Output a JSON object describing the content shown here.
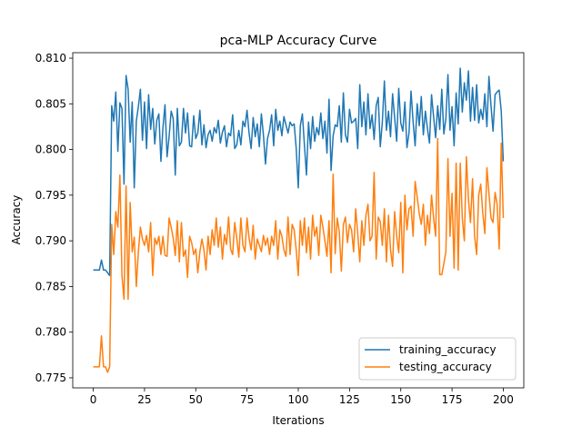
{
  "chart_data": {
    "type": "line",
    "title": "pca-MLP Accuracy Curve",
    "xlabel": "Iterations",
    "ylabel": "Accuracy",
    "x": [
      0,
      1,
      2,
      3,
      4,
      5,
      6,
      7,
      8,
      9,
      10,
      11,
      12,
      13,
      14,
      15,
      16,
      17,
      18,
      19,
      20,
      21,
      22,
      23,
      24,
      25,
      26,
      27,
      28,
      29,
      30,
      31,
      32,
      33,
      34,
      35,
      36,
      37,
      38,
      39,
      40,
      41,
      42,
      43,
      44,
      45,
      46,
      47,
      48,
      49,
      50,
      51,
      52,
      53,
      54,
      55,
      56,
      57,
      58,
      59,
      60,
      61,
      62,
      63,
      64,
      65,
      66,
      67,
      68,
      69,
      70,
      71,
      72,
      73,
      74,
      75,
      76,
      77,
      78,
      79,
      80,
      81,
      82,
      83,
      84,
      85,
      86,
      87,
      88,
      89,
      90,
      91,
      92,
      93,
      94,
      95,
      96,
      97,
      98,
      99,
      100,
      101,
      102,
      103,
      104,
      105,
      106,
      107,
      108,
      109,
      110,
      111,
      112,
      113,
      114,
      115,
      116,
      117,
      118,
      119,
      120,
      121,
      122,
      123,
      124,
      125,
      126,
      127,
      128,
      129,
      130,
      131,
      132,
      133,
      134,
      135,
      136,
      137,
      138,
      139,
      140,
      141,
      142,
      143,
      144,
      145,
      146,
      147,
      148,
      149,
      150,
      151,
      152,
      153,
      154,
      155,
      156,
      157,
      158,
      159,
      160,
      161,
      162,
      163,
      164,
      165,
      166,
      167,
      168,
      169,
      170,
      171,
      172,
      173,
      174,
      175,
      176,
      177,
      178,
      179,
      180,
      181,
      182,
      183,
      184,
      185,
      186,
      187,
      188,
      189,
      190,
      191,
      192,
      193,
      194,
      195,
      196,
      197,
      198,
      199,
      200
    ],
    "series": [
      {
        "name": "training_accuracy",
        "color": "#1f77b4",
        "values": [
          0.7868,
          0.7868,
          0.7868,
          0.7868,
          0.7879,
          0.7868,
          0.7868,
          0.7865,
          0.7862,
          0.8048,
          0.8031,
          0.8063,
          0.7998,
          0.8051,
          0.8045,
          0.7962,
          0.8081,
          0.8066,
          0.8008,
          0.8052,
          0.7958,
          0.8031,
          0.8047,
          0.8066,
          0.801,
          0.8052,
          0.8001,
          0.806,
          0.8022,
          0.8045,
          0.8006,
          0.8032,
          0.8039,
          0.7987,
          0.8024,
          0.8049,
          0.7992,
          0.8014,
          0.8042,
          0.8034,
          0.7972,
          0.8045,
          0.8004,
          0.8008,
          0.8045,
          0.8018,
          0.804,
          0.8004,
          0.8003,
          0.8037,
          0.8012,
          0.8018,
          0.8043,
          0.8005,
          0.8027,
          0.8002,
          0.8016,
          0.8021,
          0.8009,
          0.8024,
          0.8018,
          0.8032,
          0.8007,
          0.8019,
          0.8026,
          0.8003,
          0.8018,
          0.8015,
          0.8038,
          0.8001,
          0.8005,
          0.8021,
          0.8005,
          0.8031,
          0.8025,
          0.8043,
          0.8018,
          0.8001,
          0.8035,
          0.8014,
          0.8028,
          0.8003,
          0.8039,
          0.8016,
          0.7984,
          0.8012,
          0.8021,
          0.8038,
          0.8004,
          0.8044,
          0.8021,
          0.8031,
          0.8015,
          0.8036,
          0.8027,
          0.8018,
          0.803,
          0.8026,
          0.8028,
          0.8001,
          0.7958,
          0.8026,
          0.8039,
          0.8005,
          0.7972,
          0.803,
          0.8001,
          0.8036,
          0.8009,
          0.8024,
          0.8016,
          0.804,
          0.8012,
          0.8031,
          0.7996,
          0.8055,
          0.7977,
          0.8015,
          0.8027,
          0.8025,
          0.8048,
          0.8008,
          0.8062,
          0.8016,
          0.8008,
          0.8044,
          0.8029,
          0.8031,
          0.8034,
          0.8001,
          0.8071,
          0.8025,
          0.8052,
          0.8016,
          0.8061,
          0.8023,
          0.8038,
          0.8011,
          0.8048,
          0.8057,
          0.8003,
          0.803,
          0.8075,
          0.8021,
          0.8042,
          0.8014,
          0.8061,
          0.8035,
          0.8009,
          0.8067,
          0.8029,
          0.802,
          0.8052,
          0.8002,
          0.8018,
          0.8064,
          0.8031,
          0.8004,
          0.805,
          0.8026,
          0.8058,
          0.8016,
          0.8042,
          0.8023,
          0.8007,
          0.806,
          0.8036,
          0.8013,
          0.8048,
          0.8022,
          0.8066,
          0.8017,
          0.8034,
          0.8082,
          0.8021,
          0.8047,
          0.8004,
          0.8062,
          0.8028,
          0.8089,
          0.8041,
          0.8073,
          0.8054,
          0.8086,
          0.8031,
          0.8068,
          0.8032,
          0.8071,
          0.8029,
          0.8044,
          0.8033,
          0.8061,
          0.8025,
          0.808,
          0.8048,
          0.802,
          0.806,
          0.8063,
          0.8065,
          0.8042,
          0.7987
        ]
      },
      {
        "name": "testing_accuracy",
        "color": "#ff7f0e",
        "values": [
          0.7762,
          0.7762,
          0.7762,
          0.7762,
          0.7796,
          0.7762,
          0.7762,
          0.7756,
          0.7762,
          0.7918,
          0.7885,
          0.7932,
          0.7915,
          0.7972,
          0.7862,
          0.7836,
          0.796,
          0.7836,
          0.7942,
          0.7888,
          0.7904,
          0.785,
          0.7888,
          0.7915,
          0.7902,
          0.7895,
          0.7906,
          0.7888,
          0.792,
          0.7862,
          0.7903,
          0.7896,
          0.7905,
          0.7885,
          0.7905,
          0.7884,
          0.7883,
          0.7925,
          0.7915,
          0.7903,
          0.7884,
          0.7922,
          0.7877,
          0.792,
          0.7883,
          0.789,
          0.786,
          0.7905,
          0.7898,
          0.7885,
          0.7891,
          0.7865,
          0.7888,
          0.7902,
          0.789,
          0.7868,
          0.7905,
          0.7885,
          0.7912,
          0.7895,
          0.7925,
          0.7893,
          0.7915,
          0.788,
          0.7907,
          0.7896,
          0.7926,
          0.7891,
          0.7885,
          0.792,
          0.7903,
          0.7882,
          0.7925,
          0.7895,
          0.7888,
          0.7925,
          0.7903,
          0.789,
          0.7917,
          0.788,
          0.7902,
          0.7895,
          0.7888,
          0.7906,
          0.7895,
          0.7903,
          0.7885,
          0.7905,
          0.7895,
          0.7922,
          0.788,
          0.7912,
          0.7905,
          0.789,
          0.7883,
          0.7926,
          0.7885,
          0.7918,
          0.7912,
          0.789,
          0.7862,
          0.7922,
          0.7895,
          0.7925,
          0.7887,
          0.7915,
          0.788,
          0.7928,
          0.7905,
          0.7915,
          0.7884,
          0.7928,
          0.7915,
          0.79,
          0.7883,
          0.7922,
          0.7865,
          0.7973,
          0.7886,
          0.7925,
          0.791,
          0.7867,
          0.7918,
          0.7926,
          0.7898,
          0.7918,
          0.7912,
          0.7888,
          0.7935,
          0.7908,
          0.7877,
          0.7922,
          0.7895,
          0.7928,
          0.794,
          0.79,
          0.7905,
          0.7975,
          0.788,
          0.7926,
          0.7921,
          0.7895,
          0.7935,
          0.7877,
          0.7928,
          0.789,
          0.7872,
          0.7932,
          0.7905,
          0.7887,
          0.7942,
          0.7865,
          0.795,
          0.7912,
          0.7935,
          0.7938,
          0.7905,
          0.7965,
          0.7948,
          0.793,
          0.7918,
          0.794,
          0.7895,
          0.7928,
          0.7908,
          0.795,
          0.7925,
          0.7905,
          0.8012,
          0.7863,
          0.7863,
          0.7875,
          0.7888,
          0.799,
          0.7905,
          0.7952,
          0.787,
          0.7985,
          0.7868,
          0.7985,
          0.7925,
          0.79,
          0.7992,
          0.7945,
          0.792,
          0.7968,
          0.7905,
          0.7885,
          0.795,
          0.7962,
          0.793,
          0.7908,
          0.798,
          0.7952,
          0.7925,
          0.792,
          0.7953,
          0.794,
          0.7891,
          0.8007,
          0.7925
        ]
      }
    ],
    "xlim": [
      -10,
      210
    ],
    "xticks": [
      0,
      25,
      50,
      75,
      100,
      125,
      150,
      175,
      200
    ],
    "ylim": [
      0.7739,
      0.8106
    ],
    "yticks": [
      0.775,
      {
        "value": 0.78,
        "label": "0.780"
      },
      0.785,
      {
        "value": 0.79,
        "label": "0.790"
      },
      0.795,
      {
        "value": 0.8,
        "label": "0.800"
      },
      0.805,
      {
        "value": 0.81,
        "label": "0.810"
      }
    ],
    "legend": "lower right",
    "grid": false
  }
}
